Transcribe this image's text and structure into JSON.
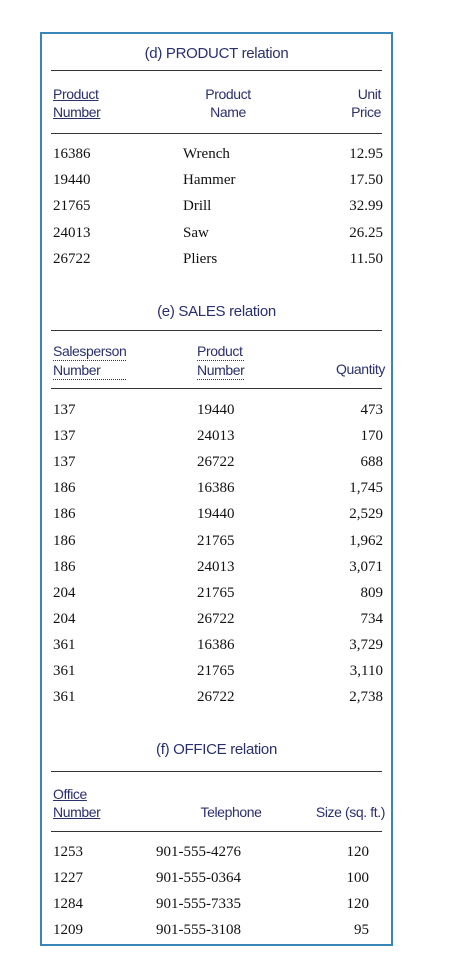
{
  "product": {
    "caption": "(d) PRODUCT relation",
    "headers": {
      "c1": [
        "Product",
        "Number"
      ],
      "c2": [
        "Product",
        "Name"
      ],
      "c3": [
        "Unit",
        "Price"
      ]
    },
    "rows": [
      [
        "16386",
        "Wrench",
        "12.95"
      ],
      [
        "19440",
        "Hammer",
        "17.50"
      ],
      [
        "21765",
        "Drill",
        "32.99"
      ],
      [
        "24013",
        "Saw",
        "26.25"
      ],
      [
        "26722",
        "Pliers",
        "11.50"
      ]
    ]
  },
  "sales": {
    "caption": "(e) SALES relation",
    "headers": {
      "c1": [
        "Salesperson",
        "Number"
      ],
      "c2": [
        "Product",
        "Number"
      ],
      "c3": [
        "Quantity"
      ]
    },
    "rows": [
      [
        "137",
        "19440",
        "473"
      ],
      [
        "137",
        "24013",
        "170"
      ],
      [
        "137",
        "26722",
        "688"
      ],
      [
        "186",
        "16386",
        "1,745"
      ],
      [
        "186",
        "19440",
        "2,529"
      ],
      [
        "186",
        "21765",
        "1,962"
      ],
      [
        "186",
        "24013",
        "3,071"
      ],
      [
        "204",
        "21765",
        "809"
      ],
      [
        "204",
        "26722",
        "734"
      ],
      [
        "361",
        "16386",
        "3,729"
      ],
      [
        "361",
        "21765",
        "3,110"
      ],
      [
        "361",
        "26722",
        "2,738"
      ]
    ]
  },
  "office": {
    "caption": "(f) OFFICE relation",
    "headers": {
      "c1": [
        "Office",
        "Number"
      ],
      "c2": [
        "Telephone"
      ],
      "c3": [
        "Size (sq. ft.)"
      ]
    },
    "rows": [
      [
        "1253",
        "901-555-4276",
        "120"
      ],
      [
        "1227",
        "901-555-0364",
        "100"
      ],
      [
        "1284",
        "901-555-7335",
        "120"
      ],
      [
        "1209",
        "901-555-3108",
        "95"
      ]
    ]
  },
  "colors": {
    "border": "#3a86b9",
    "heading": "#2a2f6e"
  }
}
